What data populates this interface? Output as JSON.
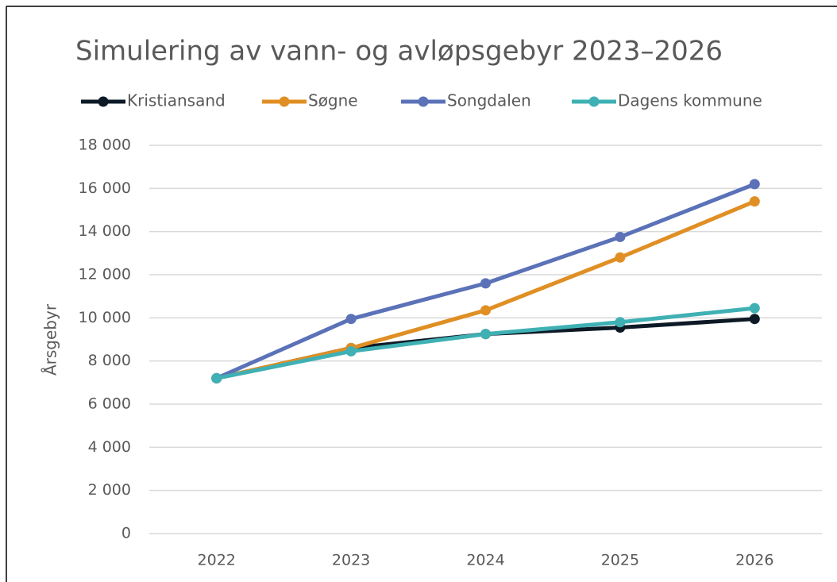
{
  "chart_data": {
    "type": "line",
    "title": "Simulering av vann- og avløpsgebyr 2023–2026",
    "y_label": "Årsgebyr",
    "categories": [
      "2022",
      "2023",
      "2024",
      "2025",
      "2026"
    ],
    "series": [
      {
        "name": "Kristiansand",
        "color": "#0d1a26",
        "values": [
          7200,
          8600,
          9250,
          9550,
          9950
        ]
      },
      {
        "name": "Søgne",
        "color": "#e08f24",
        "values": [
          7200,
          8600,
          10350,
          12800,
          15400
        ]
      },
      {
        "name": "Songdalen",
        "color": "#5b72b8",
        "values": [
          7200,
          9950,
          11600,
          13750,
          16200
        ]
      },
      {
        "name": "Dagens kommune",
        "color": "#3fb0b3",
        "values": [
          7200,
          8450,
          9250,
          9800,
          10450
        ]
      }
    ],
    "ylim": [
      0,
      18000
    ],
    "yticks": [
      0,
      {
        "value": 2000,
        "label": "2 000"
      },
      {
        "value": 4000,
        "label": "4 000"
      },
      {
        "value": 6000,
        "label": "6 000"
      },
      {
        "value": 8000,
        "label": "8 000"
      },
      {
        "value": 10000,
        "label": "10 000"
      },
      {
        "value": 12000,
        "label": "12 000"
      },
      {
        "value": 14000,
        "label": "14 000"
      },
      {
        "value": 16000,
        "label": "16 000"
      },
      {
        "value": 18000,
        "label": "18 000"
      }
    ],
    "grid": true,
    "legend": "top"
  }
}
